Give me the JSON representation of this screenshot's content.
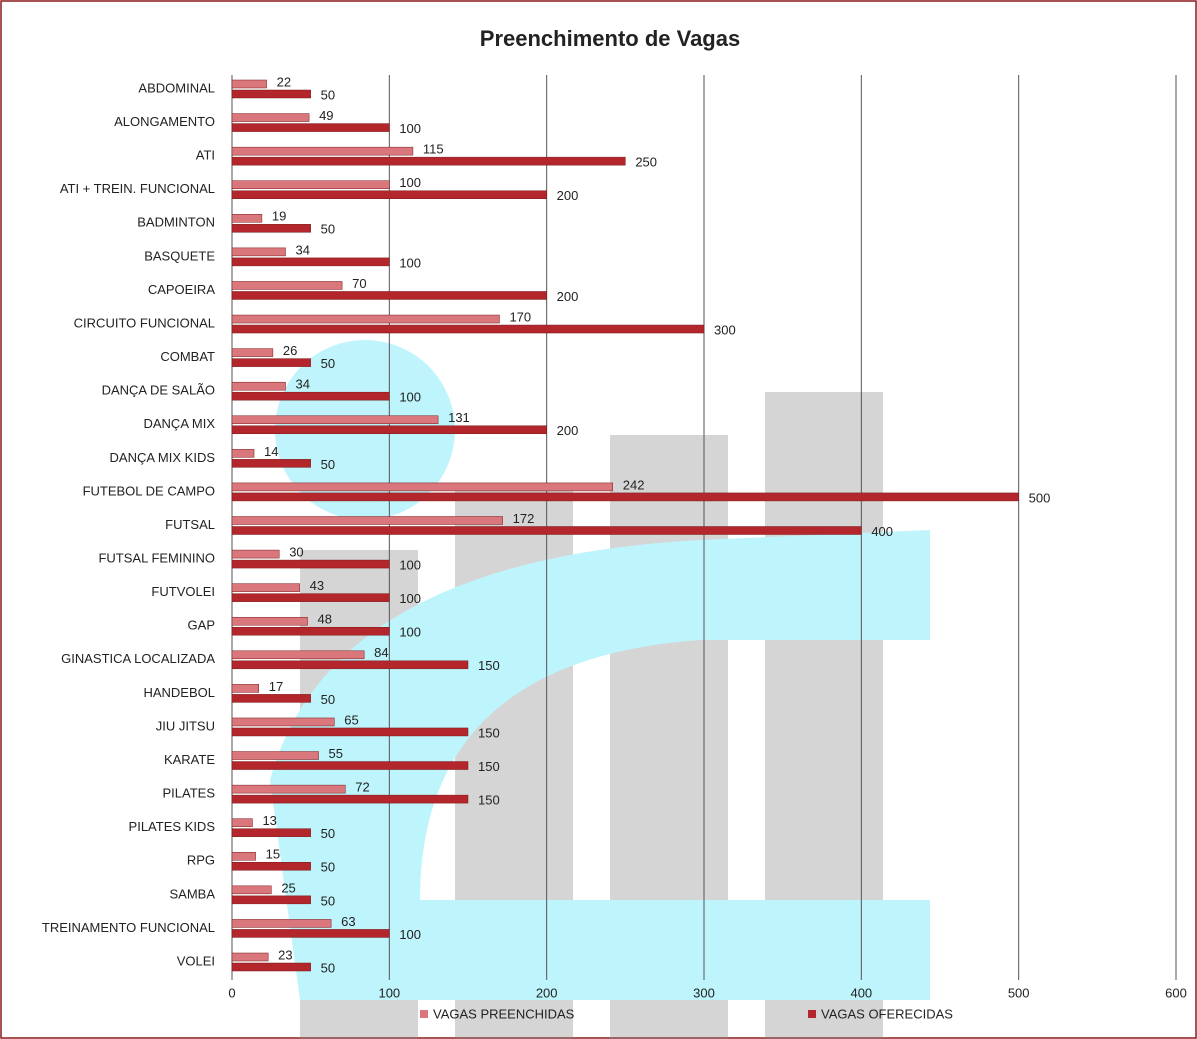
{
  "chart_data": {
    "type": "bar",
    "orientation": "horizontal",
    "title": "Preenchimento de Vagas",
    "categories": [
      "ABDOMINAL",
      "ALONGAMENTO",
      "ATI",
      "ATI + TREIN. FUNCIONAL",
      "BADMINTON",
      "BASQUETE",
      "CAPOEIRA",
      "CIRCUITO FUNCIONAL",
      "COMBAT",
      "DANÇA DE SALÃO",
      "DANÇA MIX",
      "DANÇA MIX KIDS",
      "FUTEBOL DE CAMPO",
      "FUTSAL",
      "FUTSAL FEMININO",
      "FUTVOLEI",
      "GAP",
      "GINASTICA LOCALIZADA",
      "HANDEBOL",
      "JIU JITSU",
      "KARATE",
      "PILATES",
      "PILATES KIDS",
      "RPG",
      "SAMBA",
      "TREINAMENTO FUNCIONAL",
      "VOLEI"
    ],
    "series": [
      {
        "name": "VAGAS PREENCHIDAS",
        "color": "#d9777d",
        "values": [
          22,
          49,
          115,
          100,
          19,
          34,
          70,
          170,
          26,
          34,
          131,
          14,
          242,
          172,
          30,
          43,
          48,
          84,
          17,
          65,
          55,
          72,
          13,
          15,
          25,
          63,
          23
        ]
      },
      {
        "name": "VAGAS OFERECIDAS",
        "color": "#b3262c",
        "values": [
          50,
          100,
          250,
          200,
          50,
          100,
          200,
          300,
          50,
          100,
          200,
          50,
          500,
          400,
          100,
          100,
          100,
          150,
          50,
          150,
          150,
          150,
          50,
          50,
          50,
          100,
          50
        ]
      }
    ],
    "xlim": [
      0,
      600
    ],
    "xticks": [
      0,
      100,
      200,
      300,
      400,
      500,
      600
    ],
    "grid": true
  }
}
